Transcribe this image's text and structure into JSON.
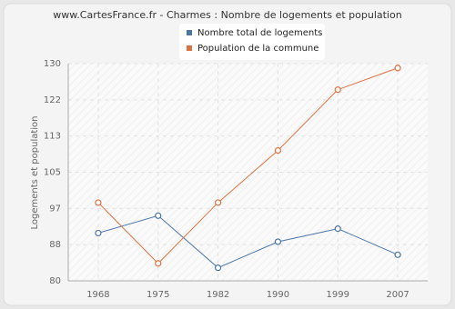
{
  "chart_data": {
    "type": "line",
    "title": "www.CartesFrance.fr - Charmes : Nombre de logements et population",
    "y_label": "Logements et population",
    "categories": [
      "1968",
      "1975",
      "1982",
      "1990",
      "1999",
      "2007"
    ],
    "series": [
      {
        "name": "Nombre total de logements",
        "color": "#4a76a8",
        "values": [
          91,
          95,
          83,
          89,
          92,
          86
        ]
      },
      {
        "name": "Population de la commune",
        "color": "#e07040",
        "values": [
          98,
          84,
          98,
          110,
          124,
          129
        ]
      }
    ],
    "ylim": [
      80,
      130
    ],
    "yticks": [
      80,
      {
        "value": 88.33,
        "label": "88"
      },
      {
        "value": 96.67,
        "label": "97"
      },
      105,
      {
        "value": 113.33,
        "label": "113"
      },
      {
        "value": 121.67,
        "label": "122"
      },
      130
    ],
    "grid": true
  }
}
